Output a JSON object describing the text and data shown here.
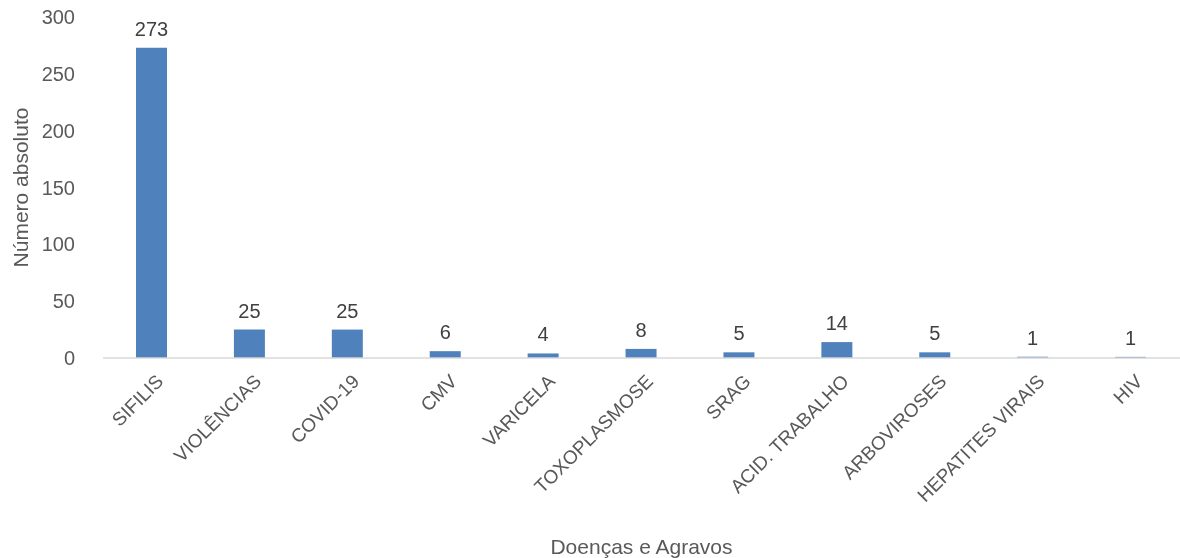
{
  "chart_data": {
    "type": "bar",
    "xlabel": "Doenças e Agravos",
    "ylabel": "Número absoluto",
    "categories": [
      "SIFILIS",
      "VIOLÊNCIAS",
      "COVID-19",
      "CMV",
      "VARICELA",
      "TOXOPLASMOSE",
      "SRAG",
      "ACID. TRABALHO",
      "ARBOVIROSES",
      "HEPATITES VIRAIS",
      "HIV"
    ],
    "values": [
      273,
      25,
      25,
      6,
      4,
      8,
      5,
      14,
      5,
      1,
      1
    ],
    "color": "#4f81bd",
    "ylim": [
      0,
      300
    ],
    "yticks": [
      0,
      50,
      100,
      150,
      200,
      250,
      300
    ],
    "data_labels": true
  }
}
